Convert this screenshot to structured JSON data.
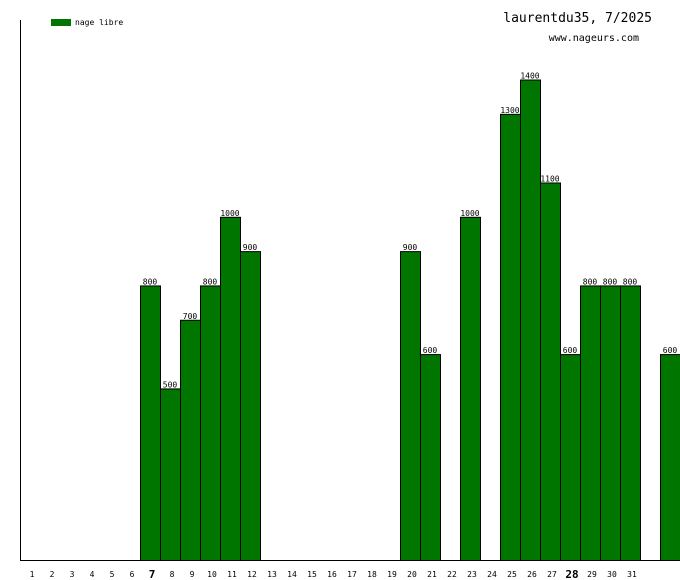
{
  "chart_data": {
    "type": "bar",
    "title": "laurentdu35, 7/2025",
    "subtitle": "www.nageurs.com",
    "legend": {
      "label": "nage libre",
      "color": "#007500",
      "position": "top-left"
    },
    "categories": [
      "1",
      "2",
      "3",
      "4",
      "5",
      "6",
      "7",
      "8",
      "9",
      "10",
      "11",
      "12",
      "13",
      "14",
      "15",
      "16",
      "17",
      "18",
      "19",
      "20",
      "21",
      "22",
      "23",
      "24",
      "25",
      "26",
      "27",
      "28",
      "29",
      "30",
      "31"
    ],
    "bold_categories": [
      "7",
      "28"
    ],
    "series": [
      {
        "name": "nage libre",
        "color": "#007500",
        "values": [
          0,
          0,
          0,
          800,
          500,
          700,
          800,
          1000,
          900,
          0,
          0,
          0,
          0,
          0,
          0,
          0,
          900,
          600,
          0,
          1000,
          0,
          1300,
          1400,
          1100,
          600,
          800,
          800,
          800,
          0,
          600,
          0
        ]
      }
    ],
    "value_labels": [
      "",
      "",
      "",
      "800",
      "500",
      "700",
      "800",
      "1000",
      "900",
      "",
      "",
      "",
      "",
      "",
      "",
      "",
      "900",
      "600",
      "",
      "1000",
      "",
      "1300",
      "1400",
      "1100",
      "600",
      "800",
      "800",
      "800",
      "",
      "600",
      ""
    ],
    "ylim": [
      0,
      1400
    ],
    "grid": false
  }
}
